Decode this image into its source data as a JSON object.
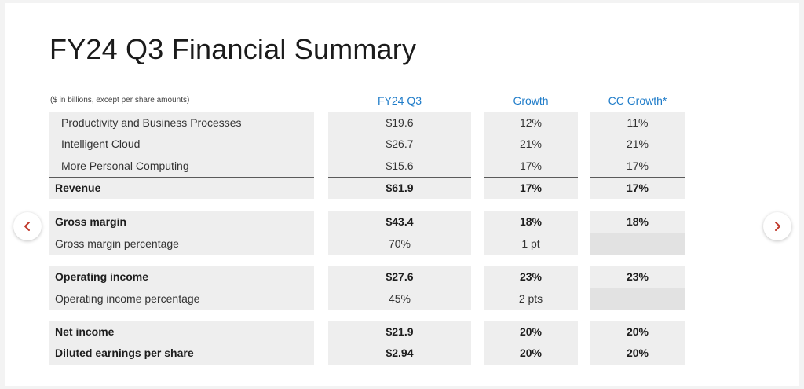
{
  "title": "FY24 Q3 Financial Summary",
  "note": "($ in billions, except per share amounts)",
  "columns": {
    "q3": "FY24 Q3",
    "growth": "Growth",
    "cc_growth": "CC Growth*"
  },
  "rows": [
    {
      "label": "Productivity and Business Processes",
      "q3": "$19.6",
      "growth": "12%",
      "cc": "11%"
    },
    {
      "label": "Intelligent Cloud",
      "q3": "$26.7",
      "growth": "21%",
      "cc": "21%"
    },
    {
      "label": "More Personal Computing",
      "q3": "$15.6",
      "growth": "17%",
      "cc": "17%"
    },
    {
      "label": "Revenue",
      "q3": "$61.9",
      "growth": "17%",
      "cc": "17%"
    },
    {
      "label": "Gross margin",
      "q3": "$43.4",
      "growth": "18%",
      "cc": "18%"
    },
    {
      "label": "Gross margin percentage",
      "q3": "70%",
      "growth": "1 pt",
      "cc": ""
    },
    {
      "label": "Operating income",
      "q3": "$27.6",
      "growth": "23%",
      "cc": "23%"
    },
    {
      "label": "Operating income percentage",
      "q3": "45%",
      "growth": "2 pts",
      "cc": ""
    },
    {
      "label": "Net income",
      "q3": "$21.9",
      "growth": "20%",
      "cc": "20%"
    },
    {
      "label": "Diluted earnings per share",
      "q3": "$2.94",
      "growth": "20%",
      "cc": "20%"
    }
  ],
  "icons": {
    "prev": "chevron-left-icon",
    "next": "chevron-right-icon"
  },
  "colors": {
    "header_blue": "#1f7cc9",
    "chevron_red": "#c0392b",
    "cell_bg": "#eeeeee"
  }
}
